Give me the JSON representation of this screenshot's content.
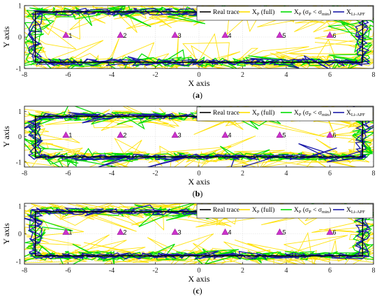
{
  "captions": [
    "a",
    "b",
    "c"
  ],
  "chart_data": [
    {
      "type": "line",
      "panel": "a",
      "xlabel": "X axis",
      "ylabel": "Y axis",
      "xlim": [
        -8,
        8
      ],
      "ylim": [
        -1,
        1
      ],
      "xticks": [
        -8,
        -6,
        -4,
        -2,
        0,
        2,
        4,
        6,
        8
      ],
      "yticks": [
        -1,
        0,
        1
      ],
      "grid": true,
      "legend_position": "top-right",
      "legend": [
        {
          "name": "Real trace",
          "color": "#000000"
        },
        {
          "name": "X",
          "sub": "P",
          "suffix": " (full)",
          "color": "#ffe000"
        },
        {
          "name": "X",
          "sub": "P",
          "suffix": " (σ",
          "sub2": "P",
          "suffix2": " < σ",
          "sub3": "min",
          "suffix3": ")",
          "color": "#00dd00"
        },
        {
          "name": "X",
          "sub": "Li-APF",
          "color": "#1a1aa8"
        }
      ],
      "real_trace": {
        "x": [
          -7.5,
          7.5,
          7.5,
          -7.5,
          -7.5
        ],
        "y": [
          -0.8,
          -0.8,
          0.8,
          0.8,
          -0.8
        ]
      },
      "anchors": [
        {
          "label": "1",
          "x": -6.1,
          "y": 0.05
        },
        {
          "label": "2",
          "x": -3.6,
          "y": 0.05
        },
        {
          "label": "3",
          "x": -1.1,
          "y": 0.05
        },
        {
          "label": "4",
          "x": 1.2,
          "y": 0.05
        },
        {
          "label": "5",
          "x": 3.7,
          "y": 0.05
        },
        {
          "label": "6",
          "x": 6.0,
          "y": 0.05
        }
      ],
      "colors": {
        "full": "#ffe000",
        "sigma": "#00dd00",
        "liapf": "#1a1aa8",
        "anchor": "#cc33cc"
      }
    },
    {
      "type": "line",
      "panel": "b",
      "xlabel": "X axis",
      "ylabel": "Y axis",
      "xlim": [
        -8,
        8
      ],
      "ylim": [
        -1.2,
        1.2
      ],
      "xticks": [
        -8,
        -6,
        -4,
        -2,
        0,
        2,
        4,
        6,
        8
      ],
      "yticks": [
        -1,
        0,
        1
      ],
      "grid": true,
      "legend_position": "top-right",
      "legend": [
        {
          "name": "Real trace",
          "color": "#000000"
        },
        {
          "name": "X",
          "sub": "P",
          "suffix": " (full)",
          "color": "#ffe000"
        },
        {
          "name": "X",
          "sub": "P",
          "suffix": " (σ",
          "sub2": "P",
          "suffix2": " < σ",
          "sub3": "min",
          "suffix3": ")",
          "color": "#00dd00"
        },
        {
          "name": "X",
          "sub": "Li-APF",
          "color": "#1a1aa8"
        }
      ],
      "real_trace": {
        "x": [
          -7.5,
          7.5,
          7.5,
          -7.5,
          -7.5
        ],
        "y": [
          -0.8,
          -0.8,
          0.8,
          0.8,
          -0.8
        ]
      },
      "anchors": [
        {
          "label": "1",
          "x": -6.1,
          "y": 0.05
        },
        {
          "label": "2",
          "x": -3.6,
          "y": 0.05
        },
        {
          "label": "3",
          "x": -1.1,
          "y": 0.05
        },
        {
          "label": "4",
          "x": 1.2,
          "y": 0.05
        },
        {
          "label": "5",
          "x": 3.7,
          "y": 0.05
        },
        {
          "label": "6",
          "x": 6.0,
          "y": 0.05
        }
      ],
      "colors": {
        "full": "#ffe000",
        "sigma": "#00dd00",
        "liapf": "#1a1aa8",
        "anchor": "#cc33cc"
      }
    },
    {
      "type": "line",
      "panel": "c",
      "xlabel": "X axis",
      "ylabel": "Y axis",
      "xlim": [
        -8,
        8
      ],
      "ylim": [
        -1.1,
        1.1
      ],
      "xticks": [
        -8,
        -6,
        -4,
        -2,
        0,
        2,
        4,
        6,
        8
      ],
      "yticks": [
        -1,
        0,
        1
      ],
      "grid": true,
      "legend_position": "top-right",
      "legend": [
        {
          "name": "Real trace",
          "color": "#000000"
        },
        {
          "name": "X",
          "sub": "P",
          "suffix": " (full)",
          "color": "#ffe000"
        },
        {
          "name": "X",
          "sub": "P",
          "suffix": " (σ",
          "sub2": "P",
          "suffix2": " < σ",
          "sub3": "min",
          "suffix3": ")",
          "color": "#00dd00"
        },
        {
          "name": "X",
          "sub": "Li-APF",
          "color": "#1a1aa8"
        }
      ],
      "real_trace": {
        "x": [
          -7.5,
          7.5,
          7.5,
          -7.5,
          -7.5
        ],
        "y": [
          -0.8,
          -0.8,
          0.8,
          0.8,
          -0.8
        ]
      },
      "anchors": [
        {
          "label": "1",
          "x": -6.1,
          "y": 0.05
        },
        {
          "label": "2",
          "x": -3.6,
          "y": 0.05
        },
        {
          "label": "3",
          "x": -1.1,
          "y": 0.05
        },
        {
          "label": "4",
          "x": 1.2,
          "y": 0.05
        },
        {
          "label": "5",
          "x": 3.7,
          "y": 0.05
        },
        {
          "label": "6",
          "x": 6.0,
          "y": 0.05
        }
      ],
      "colors": {
        "full": "#ffe000",
        "sigma": "#00dd00",
        "liapf": "#1a1aa8",
        "anchor": "#cc33cc"
      }
    }
  ]
}
